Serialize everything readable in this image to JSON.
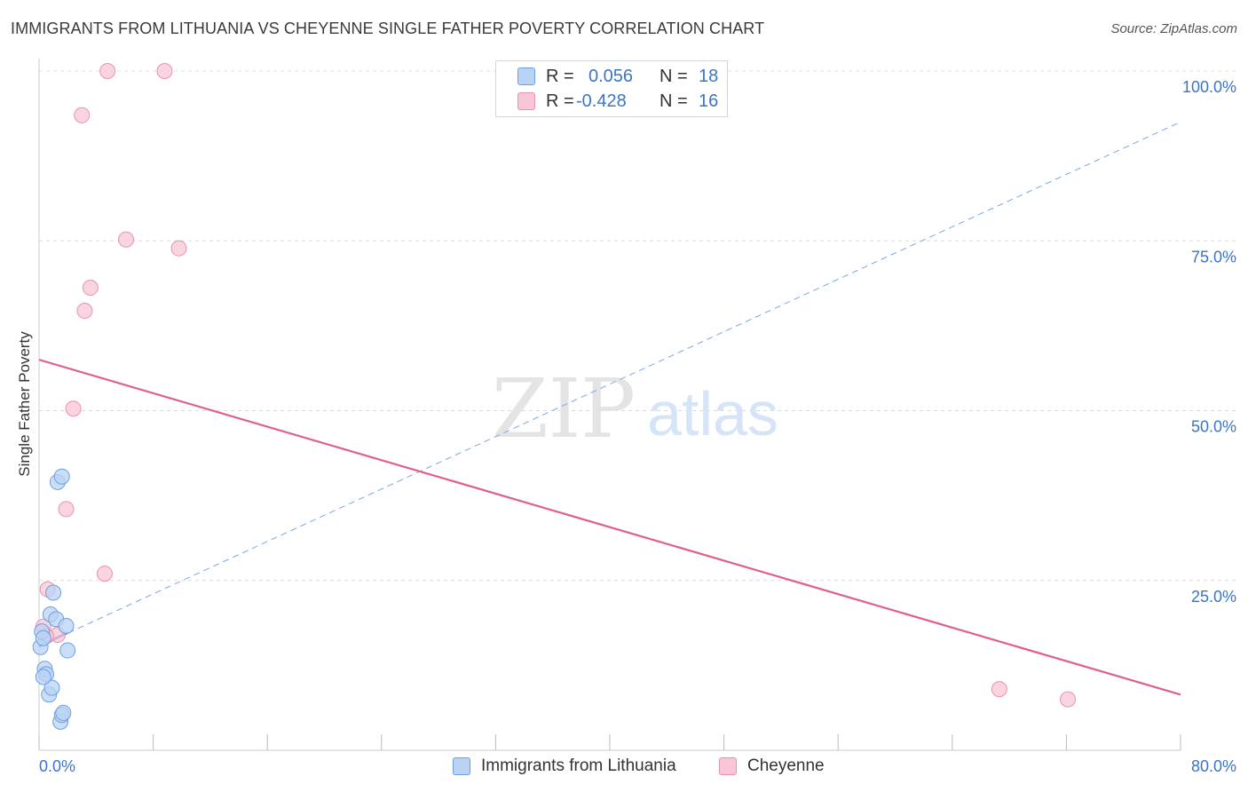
{
  "header": {
    "title": "IMMIGRANTS FROM LITHUANIA VS CHEYENNE SINGLE FATHER POVERTY CORRELATION CHART",
    "source": "Source: ZipAtlas.com"
  },
  "colors": {
    "blue_fill": "#b8d3f4",
    "blue_stroke": "#6f9fe0",
    "blue_line": "#3b6fd6",
    "pink_fill": "#f8c6d4",
    "pink_stroke": "#e893ad",
    "pink_line": "#e0608a",
    "tick_text": "#3b74c9",
    "grid": "#dcdcdc"
  },
  "legend": {
    "rows": [
      {
        "r_label": "R =",
        "r_value": "0.056",
        "n_label": "N =",
        "n_value": "18",
        "swatch": "blue"
      },
      {
        "r_label": "R =",
        "r_value": "-0.428",
        "n_label": "N =",
        "n_value": "16",
        "swatch": "pink"
      }
    ]
  },
  "watermark": {
    "zip": "ZIP",
    "atlas": "atlas"
  },
  "chart_data": {
    "type": "scatter",
    "title": "IMMIGRANTS FROM LITHUANIA VS CHEYENNE SINGLE FATHER POVERTY CORRELATION CHART",
    "xlabel": "",
    "ylabel": "Single Father Poverty",
    "xlim": [
      0,
      80
    ],
    "ylim": [
      0,
      100
    ],
    "x_tick_labels": [
      "0.0%",
      "80.0%"
    ],
    "y_ticks": [
      25,
      50,
      75,
      100
    ],
    "y_tick_labels": [
      "25.0%",
      "50.0%",
      "75.0%",
      "100.0%"
    ],
    "grid": true,
    "series": [
      {
        "name": "Immigrants from Lithuania",
        "color": "blue",
        "points": [
          {
            "x": 0.1,
            "y": 15.2
          },
          {
            "x": 0.2,
            "y": 17.5
          },
          {
            "x": 0.3,
            "y": 16.5
          },
          {
            "x": 0.4,
            "y": 12.0
          },
          {
            "x": 0.5,
            "y": 11.2
          },
          {
            "x": 0.7,
            "y": 8.2
          },
          {
            "x": 0.8,
            "y": 20.0
          },
          {
            "x": 0.9,
            "y": 9.2
          },
          {
            "x": 1.0,
            "y": 23.2
          },
          {
            "x": 1.2,
            "y": 19.3
          },
          {
            "x": 1.3,
            "y": 39.5
          },
          {
            "x": 1.5,
            "y": 4.2
          },
          {
            "x": 1.6,
            "y": 5.2
          },
          {
            "x": 1.6,
            "y": 40.3
          },
          {
            "x": 1.7,
            "y": 5.5
          },
          {
            "x": 1.9,
            "y": 18.3
          },
          {
            "x": 2.0,
            "y": 14.7
          },
          {
            "x": 0.3,
            "y": 10.8
          }
        ],
        "trend": {
          "x0": 0,
          "y0": 15.3,
          "x1": 2.0,
          "y1": 17.3,
          "dashed_extension_to": {
            "x": 80,
            "y": 92.5
          }
        }
      },
      {
        "name": "Cheyenne",
        "color": "pink",
        "points": [
          {
            "x": 0.3,
            "y": 18.2
          },
          {
            "x": 0.6,
            "y": 23.7
          },
          {
            "x": 1.3,
            "y": 17.0
          },
          {
            "x": 1.9,
            "y": 35.5
          },
          {
            "x": 2.4,
            "y": 50.3
          },
          {
            "x": 3.0,
            "y": 93.5
          },
          {
            "x": 3.2,
            "y": 64.7
          },
          {
            "x": 3.6,
            "y": 68.1
          },
          {
            "x": 4.6,
            "y": 26.0
          },
          {
            "x": 4.8,
            "y": 100.0
          },
          {
            "x": 6.1,
            "y": 75.2
          },
          {
            "x": 8.8,
            "y": 100.0
          },
          {
            "x": 9.8,
            "y": 73.9
          },
          {
            "x": 67.3,
            "y": 9.0
          },
          {
            "x": 72.1,
            "y": 7.5
          },
          {
            "x": 0.5,
            "y": 16.8
          }
        ],
        "trend": {
          "x0": 0,
          "y0": 57.5,
          "x1": 80,
          "y1": 8.2
        }
      }
    ]
  },
  "bottom_legend": {
    "items": [
      {
        "label": "Immigrants from Lithuania",
        "swatch": "blue"
      },
      {
        "label": "Cheyenne",
        "swatch": "pink"
      }
    ]
  }
}
